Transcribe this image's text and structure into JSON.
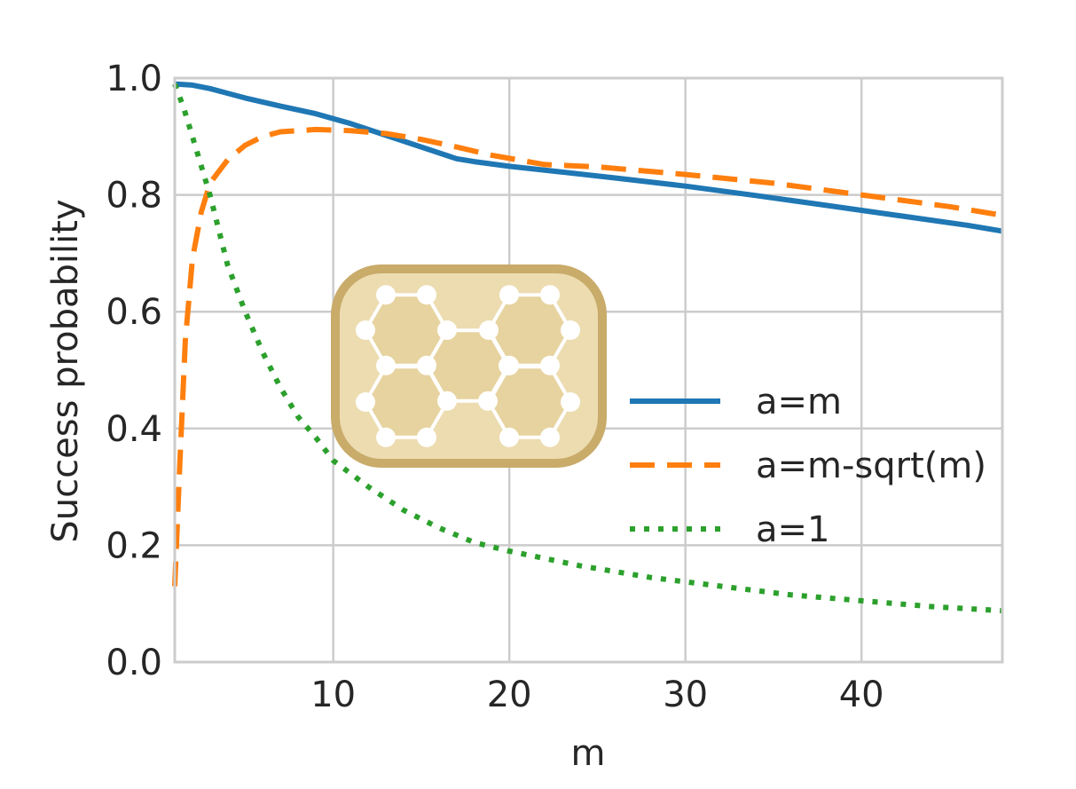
{
  "chart_data": {
    "type": "line",
    "title": "",
    "xlabel": "m",
    "ylabel": "Success probability",
    "xlim": [
      1,
      48
    ],
    "ylim": [
      0.0,
      1.0
    ],
    "xticks": [
      10,
      20,
      30,
      40
    ],
    "yticks": [
      0.0,
      0.2,
      0.4,
      0.6,
      0.8,
      1.0
    ],
    "xtick_labels": [
      "10",
      "20",
      "30",
      "40"
    ],
    "ytick_labels": [
      "0.0",
      "0.2",
      "0.4",
      "0.6",
      "0.8",
      "1.0"
    ],
    "grid": true,
    "legend_position": "lower-right",
    "series": [
      {
        "name": "a=m",
        "color": "#1f77b4",
        "style": "solid",
        "x": [
          1,
          2,
          3,
          5,
          7,
          9,
          11,
          13,
          15,
          17,
          18,
          20,
          23,
          26,
          30,
          34,
          38,
          42,
          46,
          48
        ],
        "y": [
          0.99,
          0.988,
          0.982,
          0.966,
          0.952,
          0.939,
          0.922,
          0.902,
          0.882,
          0.862,
          0.857,
          0.849,
          0.839,
          0.829,
          0.815,
          0.799,
          0.782,
          0.765,
          0.748,
          0.738
        ]
      },
      {
        "name": "a=m-sqrt(m)",
        "color": "#ff7f0e",
        "style": "dashed",
        "x": [
          1,
          1.3,
          1.6,
          2,
          2.5,
          3,
          4,
          5,
          6,
          7,
          9,
          11,
          13,
          15,
          17,
          19,
          22,
          25,
          30,
          35,
          40,
          45,
          48
        ],
        "y": [
          0.13,
          0.35,
          0.55,
          0.69,
          0.77,
          0.82,
          0.86,
          0.885,
          0.9,
          0.908,
          0.912,
          0.91,
          0.905,
          0.895,
          0.882,
          0.868,
          0.852,
          0.848,
          0.835,
          0.82,
          0.8,
          0.78,
          0.765
        ]
      },
      {
        "name": "a=1",
        "color": "#2ca02c",
        "style": "dotted",
        "x": [
          1,
          1.5,
          2,
          2.5,
          3,
          4,
          5,
          6,
          7,
          8,
          9,
          10,
          12,
          14,
          16,
          18,
          20,
          24,
          28,
          32,
          36,
          40,
          44,
          48
        ],
        "y": [
          0.99,
          0.95,
          0.9,
          0.85,
          0.8,
          0.68,
          0.6,
          0.53,
          0.47,
          0.42,
          0.385,
          0.345,
          0.3,
          0.26,
          0.23,
          0.205,
          0.19,
          0.165,
          0.145,
          0.13,
          0.115,
          0.105,
          0.095,
          0.088
        ]
      }
    ]
  }
}
